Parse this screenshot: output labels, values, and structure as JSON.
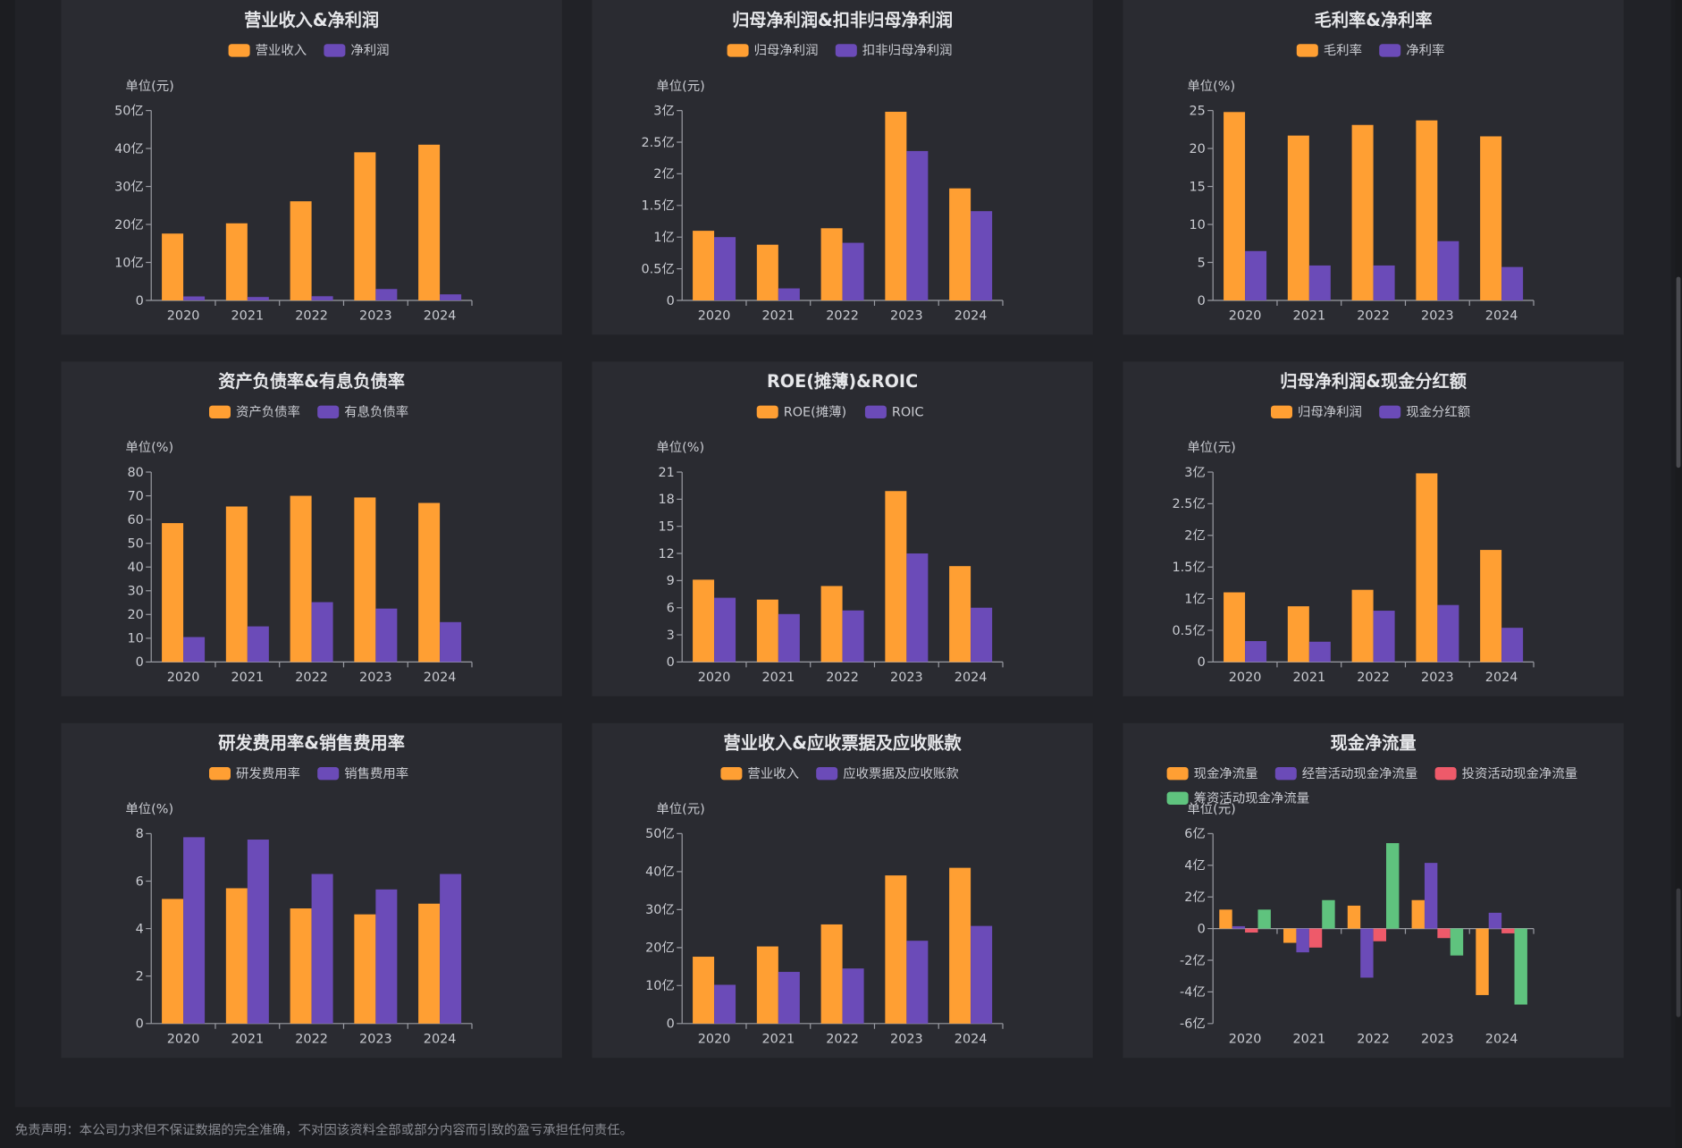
{
  "colors": {
    "orange": "#ff9f33",
    "purple": "#6b4bb8",
    "red": "#ee5a6a",
    "green": "#5fc37e",
    "axis": "#9a9ca3",
    "text": "#c9cbd1",
    "title": "#e6e7ea",
    "panel": "#2a2b31"
  },
  "disclaimer": "免责声明：本公司力求但不保证数据的完全准确，不对因该资料全部或部分内容而引致的盈亏承担任何责任。",
  "chart_data": [
    {
      "type": "bar",
      "title": "营业收入&净利润",
      "unit_label": "单位(元)",
      "categories": [
        "2020",
        "2021",
        "2022",
        "2023",
        "2024"
      ],
      "series": [
        {
          "name": "营业收入",
          "values": [
            17.6,
            20.3,
            26.1,
            39.0,
            41.0
          ]
        },
        {
          "name": "净利润",
          "values": [
            1.05,
            0.9,
            1.1,
            3.0,
            1.6
          ]
        }
      ],
      "ylim": [
        0,
        50
      ],
      "yticks": [
        0,
        10,
        20,
        30,
        40,
        50
      ],
      "ytick_labels": [
        "0",
        "10亿",
        "20亿",
        "30亿",
        "40亿",
        "50亿"
      ]
    },
    {
      "type": "bar",
      "title": "归母净利润&扣非归母净利润",
      "unit_label": "单位(元)",
      "categories": [
        "2020",
        "2021",
        "2022",
        "2023",
        "2024"
      ],
      "series": [
        {
          "name": "归母净利润",
          "values": [
            1.1,
            0.88,
            1.14,
            2.98,
            1.77
          ]
        },
        {
          "name": "扣非归母净利润",
          "values": [
            1.0,
            0.19,
            0.91,
            2.36,
            1.41
          ]
        }
      ],
      "ylim": [
        0,
        3
      ],
      "yticks": [
        0,
        0.5,
        1,
        1.5,
        2,
        2.5,
        3
      ],
      "ytick_labels": [
        "0",
        "0.5亿",
        "1亿",
        "1.5亿",
        "2亿",
        "2.5亿",
        "3亿"
      ]
    },
    {
      "type": "bar",
      "title": "毛利率&净利率",
      "unit_label": "单位(%)",
      "categories": [
        "2020",
        "2021",
        "2022",
        "2023",
        "2024"
      ],
      "series": [
        {
          "name": "毛利率",
          "values": [
            24.8,
            21.7,
            23.1,
            23.7,
            21.6
          ]
        },
        {
          "name": "净利率",
          "values": [
            6.5,
            4.6,
            4.6,
            7.8,
            4.4
          ]
        }
      ],
      "ylim": [
        0,
        25
      ],
      "yticks": [
        0,
        5,
        10,
        15,
        20,
        25
      ],
      "ytick_labels": [
        "0",
        "5",
        "10",
        "15",
        "20",
        "25"
      ]
    },
    {
      "type": "bar",
      "title": "资产负债率&有息负债率",
      "unit_label": "单位(%)",
      "categories": [
        "2020",
        "2021",
        "2022",
        "2023",
        "2024"
      ],
      "series": [
        {
          "name": "资产负债率",
          "values": [
            58.5,
            65.5,
            70.0,
            69.3,
            67.0
          ]
        },
        {
          "name": "有息负债率",
          "values": [
            10.5,
            15.0,
            25.2,
            22.5,
            16.8
          ]
        }
      ],
      "ylim": [
        0,
        80
      ],
      "yticks": [
        0,
        10,
        20,
        30,
        40,
        50,
        60,
        70,
        80
      ],
      "ytick_labels": [
        "0",
        "10",
        "20",
        "30",
        "40",
        "50",
        "60",
        "70",
        "80"
      ]
    },
    {
      "type": "bar",
      "title": "ROE(摊薄)&ROIC",
      "unit_label": "单位(%)",
      "categories": [
        "2020",
        "2021",
        "2022",
        "2023",
        "2024"
      ],
      "series": [
        {
          "name": "ROE(摊薄)",
          "values": [
            9.1,
            6.9,
            8.4,
            18.9,
            10.6
          ]
        },
        {
          "name": "ROIC",
          "values": [
            7.1,
            5.3,
            5.7,
            12.0,
            6.0
          ]
        }
      ],
      "ylim": [
        0,
        21
      ],
      "yticks": [
        0,
        3,
        6,
        9,
        12,
        15,
        18,
        21
      ],
      "ytick_labels": [
        "0",
        "3",
        "6",
        "9",
        "12",
        "15",
        "18",
        "21"
      ]
    },
    {
      "type": "bar",
      "title": "归母净利润&现金分红额",
      "unit_label": "单位(元)",
      "categories": [
        "2020",
        "2021",
        "2022",
        "2023",
        "2024"
      ],
      "series": [
        {
          "name": "归母净利润",
          "values": [
            1.1,
            0.88,
            1.14,
            2.98,
            1.77
          ]
        },
        {
          "name": "现金分红额",
          "values": [
            0.33,
            0.32,
            0.81,
            0.9,
            0.54
          ]
        }
      ],
      "ylim": [
        0,
        3
      ],
      "yticks": [
        0,
        0.5,
        1,
        1.5,
        2,
        2.5,
        3
      ],
      "ytick_labels": [
        "0",
        "0.5亿",
        "1亿",
        "1.5亿",
        "2亿",
        "2.5亿",
        "3亿"
      ]
    },
    {
      "type": "bar",
      "title": "研发费用率&销售费用率",
      "unit_label": "单位(%)",
      "categories": [
        "2020",
        "2021",
        "2022",
        "2023",
        "2024"
      ],
      "series": [
        {
          "name": "研发费用率",
          "values": [
            5.25,
            5.7,
            4.85,
            4.6,
            5.05
          ]
        },
        {
          "name": "销售费用率",
          "values": [
            7.85,
            7.75,
            6.3,
            5.65,
            6.3
          ]
        }
      ],
      "ylim": [
        0,
        8
      ],
      "yticks": [
        0,
        2,
        4,
        6,
        8
      ],
      "ytick_labels": [
        "0",
        "2",
        "4",
        "6",
        "8"
      ]
    },
    {
      "type": "bar",
      "title": "营业收入&应收票据及应收账款",
      "unit_label": "单位(元)",
      "categories": [
        "2020",
        "2021",
        "2022",
        "2023",
        "2024"
      ],
      "series": [
        {
          "name": "营业收入",
          "values": [
            17.6,
            20.3,
            26.1,
            39.0,
            41.0
          ]
        },
        {
          "name": "应收票据及应收账款",
          "values": [
            10.2,
            13.6,
            14.5,
            21.8,
            25.7
          ]
        }
      ],
      "ylim": [
        0,
        50
      ],
      "yticks": [
        0,
        10,
        20,
        30,
        40,
        50
      ],
      "ytick_labels": [
        "0",
        "10亿",
        "20亿",
        "30亿",
        "40亿",
        "50亿"
      ]
    },
    {
      "type": "bar",
      "title": "现金净流量",
      "unit_label": "单位(元)",
      "categories": [
        "2020",
        "2021",
        "2022",
        "2023",
        "2024"
      ],
      "series": [
        {
          "name": "现金净流量",
          "values": [
            1.2,
            -0.9,
            1.45,
            1.8,
            -4.2
          ]
        },
        {
          "name": "经营活动现金净流量",
          "values": [
            0.15,
            -1.5,
            -3.1,
            4.15,
            1.0
          ]
        },
        {
          "name": "投资活动现金净流量",
          "values": [
            -0.25,
            -1.2,
            -0.8,
            -0.6,
            -0.3
          ]
        },
        {
          "name": "筹资活动现金净流量",
          "values": [
            1.2,
            1.8,
            5.4,
            -1.7,
            -4.8
          ]
        }
      ],
      "ylim": [
        -6,
        6
      ],
      "yticks": [
        -6,
        -4,
        -2,
        0,
        2,
        4,
        6
      ],
      "ytick_labels": [
        "-6亿",
        "-4亿",
        "-2亿",
        "0",
        "2亿",
        "4亿",
        "6亿"
      ]
    }
  ]
}
